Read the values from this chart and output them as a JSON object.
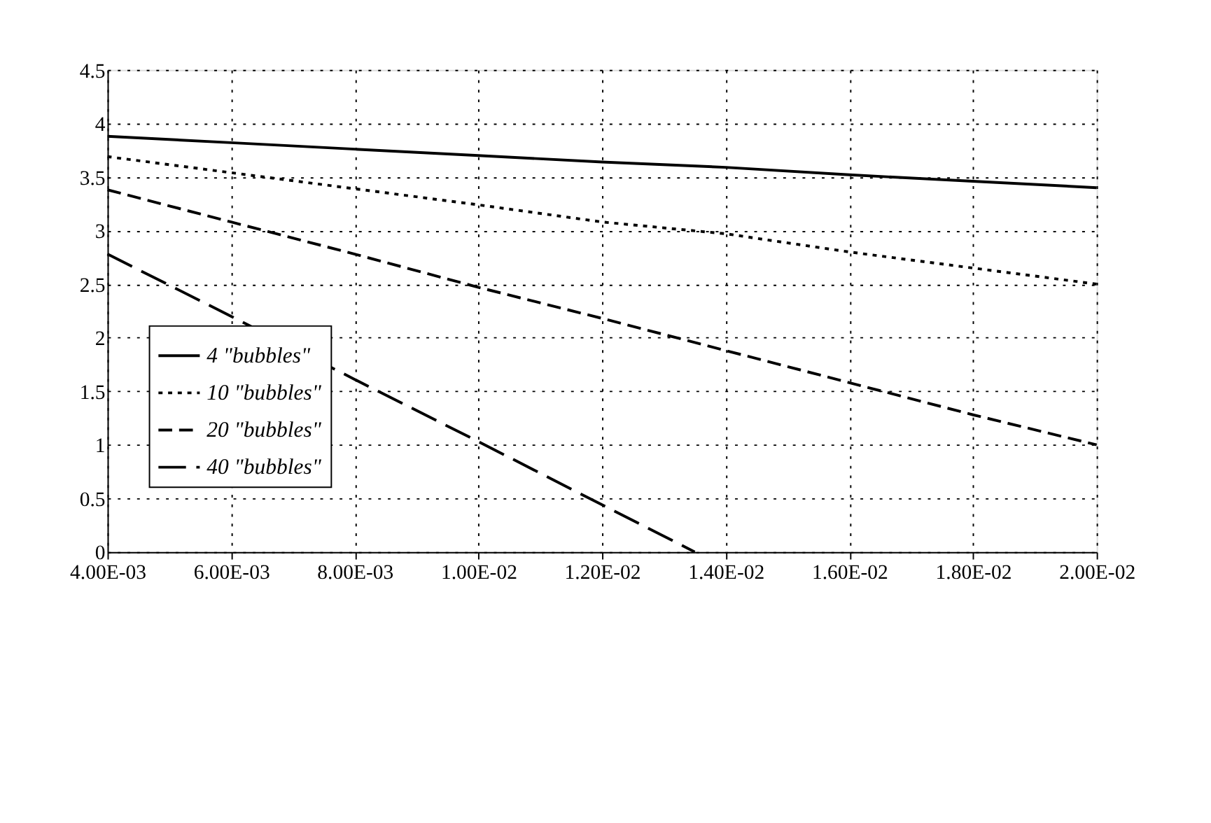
{
  "chart_data": {
    "type": "line",
    "x": [
      0.004,
      0.006,
      0.008,
      0.01,
      0.012,
      0.014,
      0.016,
      0.018,
      0.02
    ],
    "series": [
      {
        "name": "4 \"bubbles\"",
        "color": "#000000",
        "line_style": "solid",
        "values": [
          3.88,
          3.82,
          3.76,
          3.7,
          3.64,
          3.59,
          3.52,
          3.46,
          3.4
        ]
      },
      {
        "name": "10 \"bubbles\"",
        "color": "#000000",
        "line_style": "dotted",
        "values": [
          3.69,
          3.54,
          3.39,
          3.24,
          3.08,
          2.97,
          2.8,
          2.65,
          2.5
        ]
      },
      {
        "name": "20 \"bubbles\"",
        "color": "#000000",
        "line_style": "dashed",
        "values": [
          3.38,
          3.08,
          2.78,
          2.47,
          2.18,
          1.88,
          1.58,
          1.28,
          1.0
        ]
      },
      {
        "name": "40 \"bubbles\"",
        "color": "#000000",
        "line_style": "dashed",
        "x": [
          0.004,
          0.006,
          0.008,
          0.01,
          0.012,
          0.0135
        ],
        "values": [
          2.78,
          2.2,
          1.61,
          1.03,
          0.44,
          0
        ]
      }
    ],
    "xlim": [
      0.004,
      0.02
    ],
    "xticks": [
      {
        "value": 0.004,
        "label": "4.00E-03"
      },
      {
        "value": 0.006,
        "label": "6.00E-03"
      },
      {
        "value": 0.008,
        "label": "8.00E-03"
      },
      {
        "value": 0.01,
        "label": "1.00E-02"
      },
      {
        "value": 0.012,
        "label": "1.20E-02"
      },
      {
        "value": 0.014,
        "label": "1.40E-02"
      },
      {
        "value": 0.016,
        "label": "1.60E-02"
      },
      {
        "value": 0.018,
        "label": "1.80E-02"
      },
      {
        "value": 0.02,
        "label": "2.00E-02"
      }
    ],
    "ylim": [
      0,
      4.5
    ],
    "yticks": [
      0,
      0.5,
      1,
      1.5,
      2,
      2.5,
      3,
      3.5,
      4,
      4.5
    ],
    "grid": true,
    "legend": "left",
    "marker": "none"
  }
}
